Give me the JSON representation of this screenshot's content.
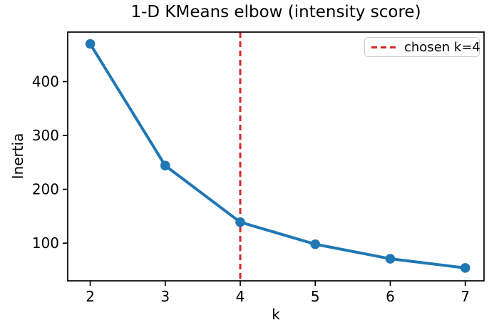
{
  "chart_data": {
    "type": "line",
    "title": "1-D KMeans elbow (intensity score)",
    "xlabel": "k",
    "ylabel": "Inertia",
    "x": [
      2,
      3,
      4,
      5,
      6,
      7
    ],
    "y": [
      470,
      244,
      139,
      98,
      71,
      54
    ],
    "xticks": [
      2,
      3,
      4,
      5,
      6,
      7
    ],
    "yticks": [
      100,
      200,
      300,
      400
    ],
    "xlim": [
      1.7,
      7.25
    ],
    "ylim": [
      30,
      492
    ],
    "grid": false,
    "line_color": "#1f77b4",
    "marker": "circle",
    "marker_color": "#1f77b4",
    "vline": {
      "x": 4,
      "color": "#d62728",
      "style": "dashed",
      "label": "chosen k=4"
    },
    "legend": {
      "position": "upper-right",
      "entries": [
        {
          "label": "chosen k=4",
          "color": "#d62728",
          "line_style": "dashed"
        }
      ]
    }
  },
  "figure": {
    "background": "#ffffff",
    "axis_color": "#000000",
    "text_color": "#000000"
  }
}
